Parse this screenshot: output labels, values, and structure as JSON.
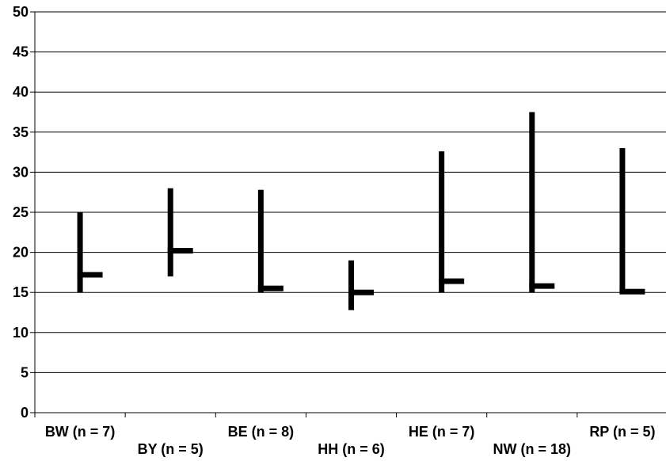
{
  "chart_data": {
    "type": "high-low-close",
    "title": "",
    "xlabel": "",
    "ylabel": "",
    "ylim": [
      0,
      50
    ],
    "yticks": [
      0,
      5,
      10,
      15,
      20,
      25,
      30,
      35,
      40,
      45,
      50
    ],
    "grid": "horizontal",
    "legend": "none",
    "categories": [
      "BW (n = 7)",
      "BY (n = 5)",
      "BE (n = 8)",
      "HH (n = 6)",
      "HE (n = 7)",
      "NW (n = 18)",
      "RP (n = 5)"
    ],
    "series": [
      {
        "values": [
          {
            "high": 25.0,
            "low": 15.0,
            "close": 17.2
          },
          {
            "high": 28.0,
            "low": 17.0,
            "close": 20.2
          },
          {
            "high": 27.8,
            "low": 15.0,
            "close": 15.5
          },
          {
            "high": 19.0,
            "low": 12.8,
            "close": 15.0
          },
          {
            "high": 32.6,
            "low": 15.0,
            "close": 16.4
          },
          {
            "high": 37.5,
            "low": 15.0,
            "close": 15.8
          },
          {
            "high": 33.0,
            "low": 14.9,
            "close": 15.1
          }
        ]
      }
    ],
    "colors": {
      "marks": "#000000",
      "grid": "#000000",
      "axis": "#000000"
    }
  }
}
